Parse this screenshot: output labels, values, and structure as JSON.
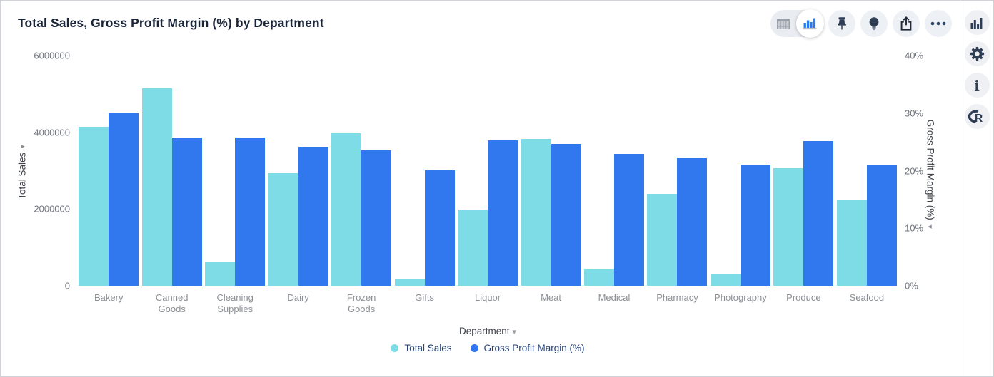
{
  "header": {
    "title": "Total Sales, Gross Profit Margin (%) by Department"
  },
  "toolbar": {
    "view_toggle": {
      "options": [
        {
          "name": "table-view",
          "icon": "table-icon",
          "selected": false
        },
        {
          "name": "chart-view",
          "icon": "bar-chart-icon",
          "selected": true
        }
      ]
    },
    "buttons": [
      {
        "name": "pin",
        "icon": "pin-icon"
      },
      {
        "name": "insights",
        "icon": "lightbulb-icon"
      },
      {
        "name": "share",
        "icon": "share-icon"
      },
      {
        "name": "more-options",
        "icon": "ellipsis-icon"
      }
    ]
  },
  "sidebar": {
    "buttons": [
      {
        "name": "visualization-gallery",
        "icon": "bar-chart-icon"
      },
      {
        "name": "settings",
        "icon": "gear-icon"
      },
      {
        "name": "info",
        "icon": "info-icon"
      },
      {
        "name": "r-integration",
        "icon": "r-logo-icon"
      }
    ]
  },
  "colors": {
    "total_sales": "#7edce6",
    "gross_profit_margin": "#3177ee",
    "title_text": "#1b2538",
    "tick_text": "#6e737c",
    "category_text": "#8c9096",
    "legend_text": "#26427a",
    "icon_dark": "#2e3d54",
    "toolbar_blue": "#2f7bf0"
  },
  "chart_data": {
    "type": "bar",
    "title": "Total Sales, Gross Profit Margin (%) by Department",
    "grid": false,
    "legend_position": "bottom",
    "categories": [
      "Bakery",
      "Canned Goods",
      "Cleaning Supplies",
      "Dairy",
      "Frozen Goods",
      "Gifts",
      "Liquor",
      "Meat",
      "Medical",
      "Pharmacy",
      "Photography",
      "Produce",
      "Seafood"
    ],
    "x_tick_labels": [
      "Bakery",
      "Canned\nGoods",
      "Cleaning\nSupplies",
      "Dairy",
      "Frozen\nGoods",
      "Gifts",
      "Liquor",
      "Meat",
      "Medical",
      "Pharmacy",
      "Photography",
      "Produce",
      "Seafood"
    ],
    "series": [
      {
        "name": "Total Sales",
        "axis": "left",
        "color": "#7edce6",
        "values": [
          4140000,
          5140000,
          620000,
          2930000,
          3970000,
          170000,
          1980000,
          3820000,
          430000,
          2400000,
          320000,
          3060000,
          2250000
        ]
      },
      {
        "name": "Gross Profit Margin (%)",
        "axis": "right",
        "color": "#3177ee",
        "values": [
          30.0,
          25.8,
          25.7,
          24.1,
          23.5,
          20.1,
          25.3,
          24.7,
          22.9,
          22.2,
          21.1,
          25.2,
          20.9
        ]
      }
    ],
    "left_axis": {
      "label": "Total Sales",
      "min": 0,
      "max": 6000000,
      "ticks": [
        "6000000",
        "4000000",
        "2000000",
        "0"
      ]
    },
    "right_axis": {
      "label": "Gross Profit Margin (%)",
      "min": 0,
      "max": 40,
      "ticks": [
        "40%",
        "30%",
        "20%",
        "10%",
        "0%"
      ]
    },
    "x_axis": {
      "label": "Department"
    },
    "legend": [
      {
        "label": "Total Sales",
        "color": "#7edce6"
      },
      {
        "label": "Gross Profit Margin (%)",
        "color": "#3177ee"
      }
    ]
  }
}
